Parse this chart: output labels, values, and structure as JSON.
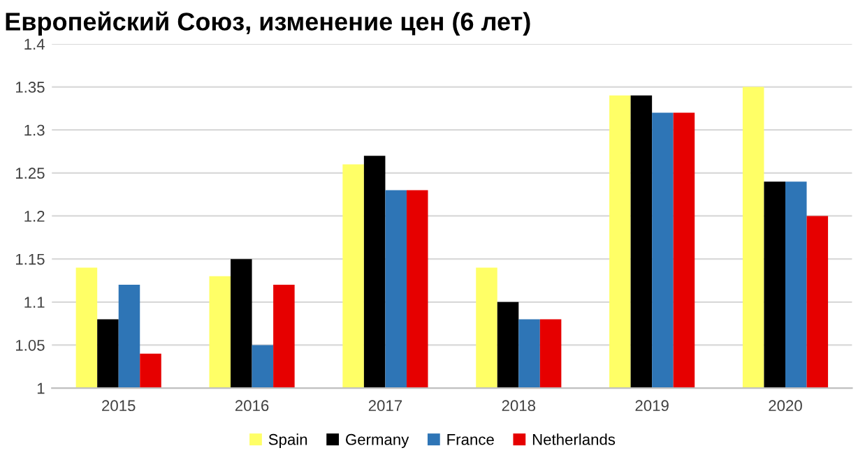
{
  "chart_data": {
    "type": "bar",
    "title": "Европейский Союз, изменение цен (6 лет)",
    "categories": [
      "2015",
      "2016",
      "2017",
      "2018",
      "2019",
      "2020"
    ],
    "series": [
      {
        "name": "Spain",
        "color": "#ffff66",
        "values": [
          1.14,
          1.13,
          1.26,
          1.14,
          1.34,
          1.35
        ]
      },
      {
        "name": "Germany",
        "color": "#000000",
        "values": [
          1.08,
          1.15,
          1.27,
          1.1,
          1.34,
          1.24
        ]
      },
      {
        "name": "France",
        "color": "#2e75b6",
        "values": [
          1.12,
          1.05,
          1.23,
          1.08,
          1.32,
          1.24
        ]
      },
      {
        "name": "Netherlands",
        "color": "#e60000",
        "values": [
          1.04,
          1.12,
          1.23,
          1.08,
          1.32,
          1.2
        ]
      }
    ],
    "ylim": [
      1,
      1.4
    ],
    "yticks": [
      1,
      1.05,
      1.1,
      1.15,
      1.2,
      1.25,
      1.3,
      1.35,
      1.4
    ],
    "grid": "y",
    "legend": "bottom"
  }
}
